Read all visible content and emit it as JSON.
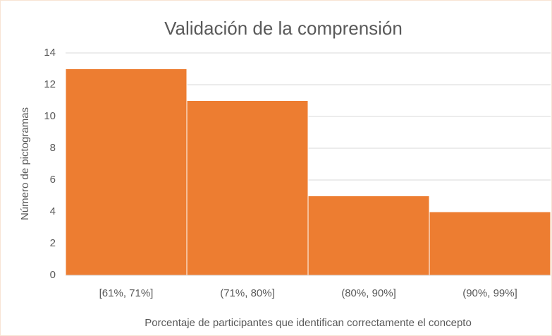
{
  "chart_data": {
    "type": "bar",
    "title": "Validación de la comprensión",
    "x_label": "Porcentaje de participantes que identifican correctamente el concepto",
    "y_label": "Número de pictogramas",
    "categories": [
      "[61%, 71%]",
      "(71%, 80%]",
      "(80%, 90%]",
      "(90%, 99%]"
    ],
    "values": [
      13,
      11,
      5,
      4
    ],
    "color": "#ed7d31",
    "ylim": [
      0,
      14
    ],
    "yticks": [
      0,
      2,
      4,
      6,
      8,
      10,
      12,
      14
    ],
    "grid": true
  }
}
